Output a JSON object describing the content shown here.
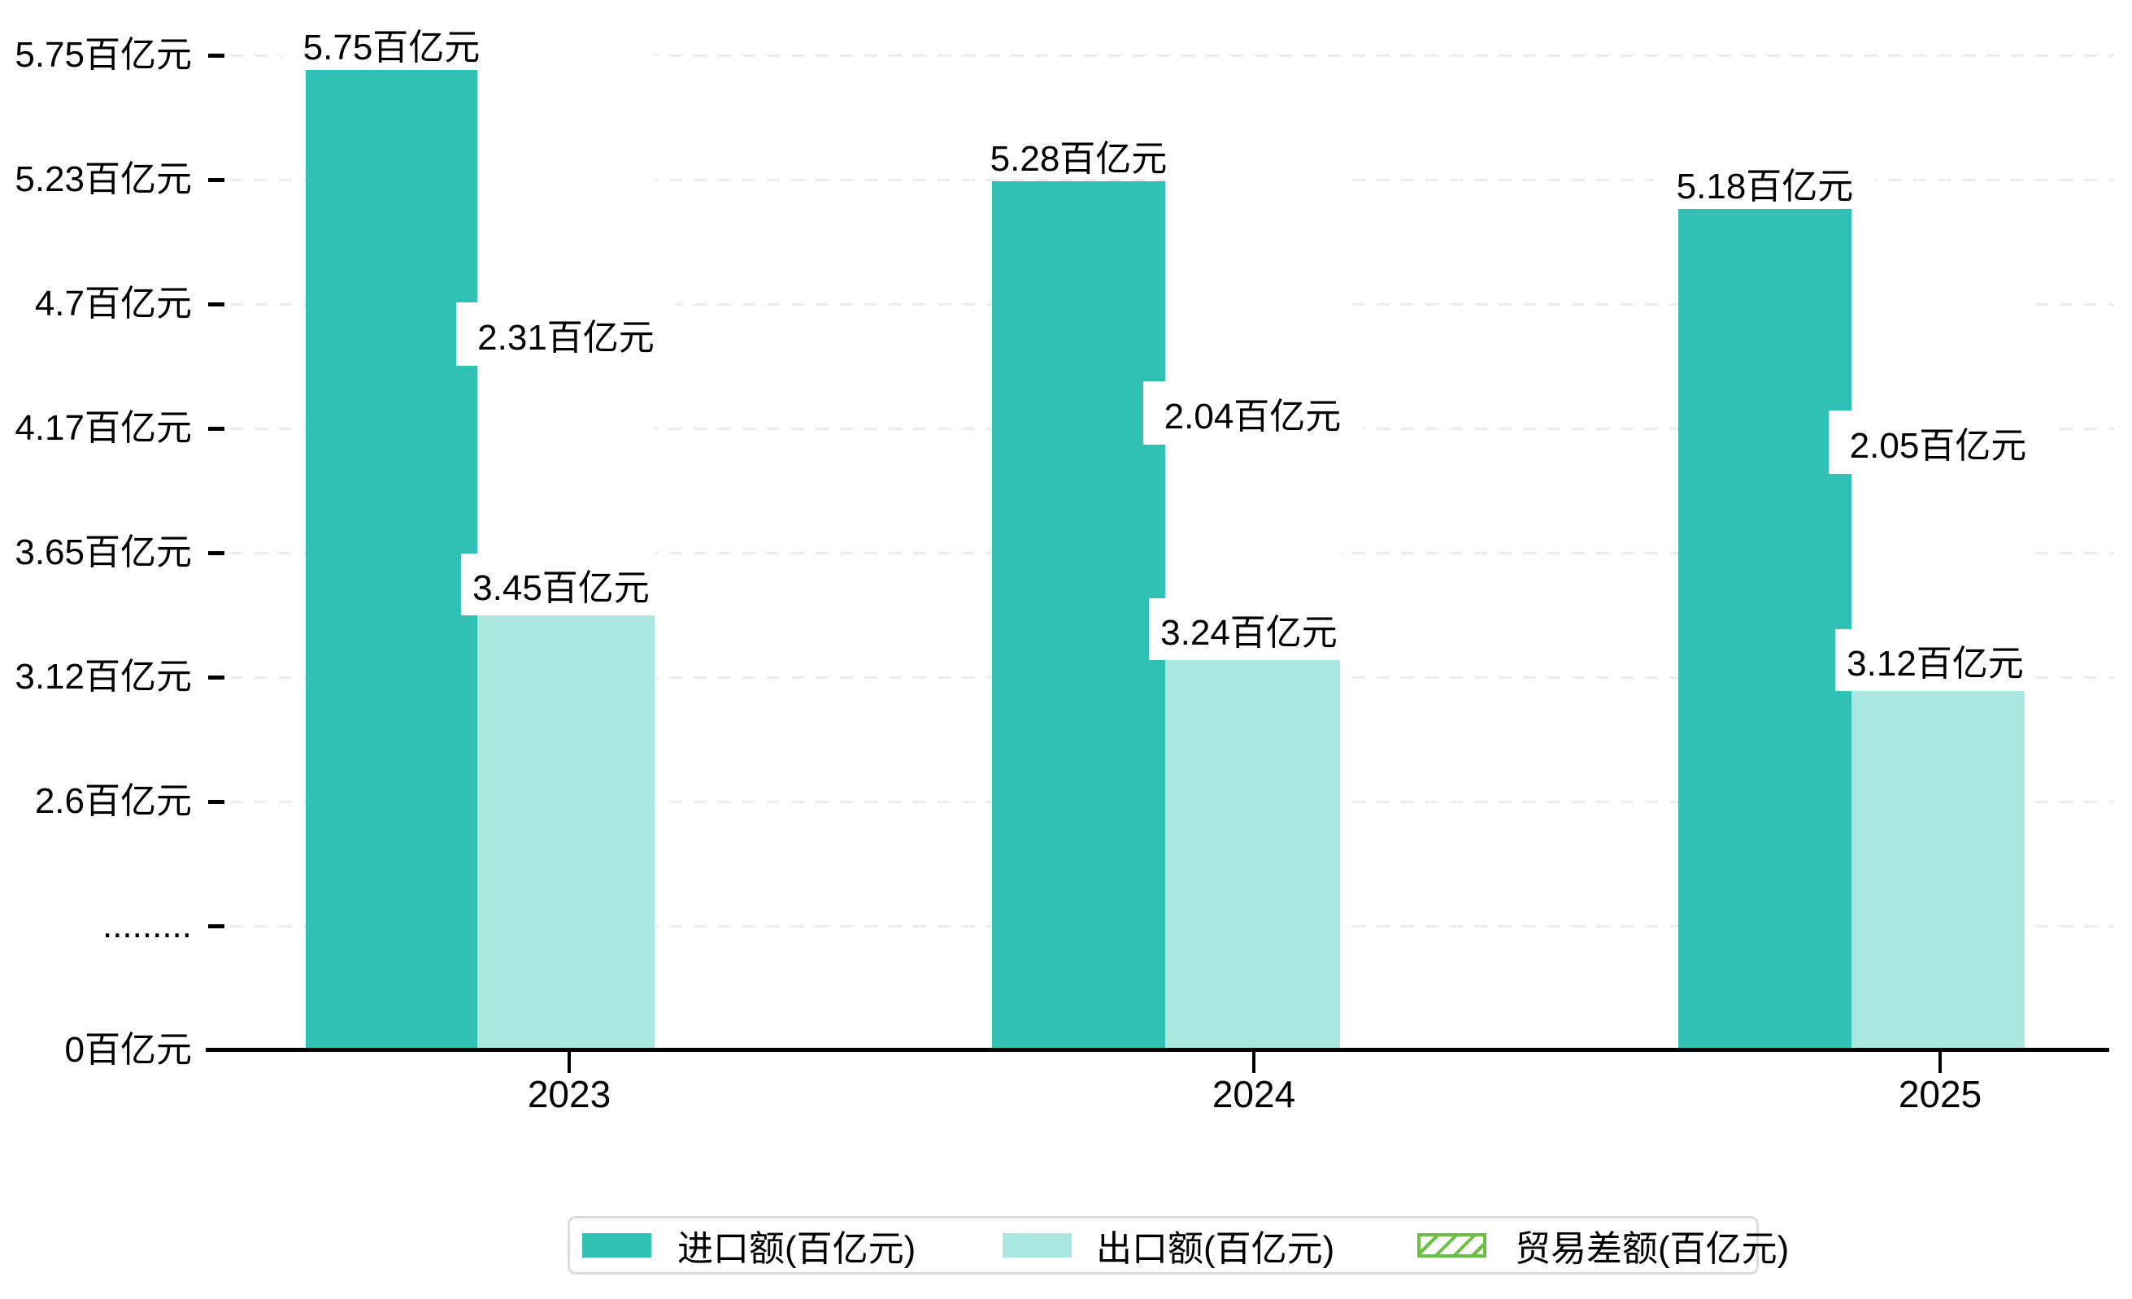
{
  "chart_data": {
    "type": "bar",
    "title": "",
    "unit": "百亿元",
    "categories": [
      "2023",
      "2024",
      "2025"
    ],
    "series": [
      {
        "name": "进口额(百亿元)",
        "values": [
          5.75,
          5.28,
          5.18
        ],
        "labels": [
          "5.75百亿元",
          "5.28百亿元",
          "5.18百亿元"
        ],
        "color": "#30c0b4",
        "style": "solid"
      },
      {
        "name": "出口额(百亿元)",
        "values": [
          3.45,
          3.24,
          3.12
        ],
        "labels": [
          "3.45百亿元",
          "3.24百亿元",
          "3.12百亿元"
        ],
        "color": "#a9e8e0",
        "style": "solid"
      },
      {
        "name": "贸易差额(百亿元)",
        "values": [
          2.31,
          2.04,
          2.05
        ],
        "labels": [
          "2.31百亿元",
          "2.04百亿元",
          "2.05百亿元"
        ],
        "color": "#6abf45",
        "style": "hatched",
        "note": "stacked on top of export bar"
      }
    ],
    "y_axis": {
      "tick_labels": [
        "5.75百亿元",
        "5.23百亿元",
        "4.7百亿元",
        "4.17百亿元",
        "3.65百亿元",
        "3.12百亿元",
        "2.6百亿元",
        ".........",
        "0百亿元"
      ],
      "range": [
        0,
        5.75
      ]
    },
    "x_axis": {
      "tick_labels": [
        "2023",
        "2024",
        "2025"
      ]
    },
    "legend": {
      "position": "bottom",
      "entries": [
        "进口额(百亿元)",
        "出口额(百亿元)",
        "贸易差额(百亿元)"
      ]
    },
    "grid": "horizontal dashed gray lines"
  },
  "colors": {
    "import_bar": "#30c0b4",
    "export_bar": "#a9e8e0",
    "diff_hatch": "#6abf45",
    "gridline": "#ececec",
    "axis": "#000000",
    "legend_border": "#dcdcdc",
    "background": "#ffffff"
  }
}
